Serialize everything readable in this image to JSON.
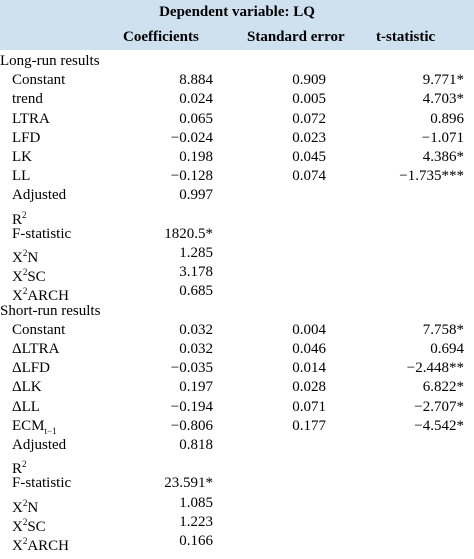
{
  "header": {
    "title": "Dependent variable: LQ",
    "col_coef": "Coefficients",
    "col_se": "Standard error",
    "col_t": "t-statistic"
  },
  "rows": [
    {
      "label": "Long-run results",
      "section": true
    },
    {
      "label": "Constant",
      "coef": "8.884",
      "se": "0.909",
      "t": "9.771*"
    },
    {
      "label": "trend",
      "coef": "0.024",
      "se": "0.005",
      "t": "4.703*"
    },
    {
      "label": "LTRA",
      "coef": "0.065",
      "se": "0.072",
      "t": "0.896"
    },
    {
      "label": "LFD",
      "coef": "−0.024",
      "se": "0.023",
      "t": "−1.071"
    },
    {
      "label": "LK",
      "coef": "0.198",
      "se": "0.045",
      "t": "4.386*"
    },
    {
      "label": "LL",
      "coef": "−0.128",
      "se": "0.074",
      "t": "−1.735***"
    },
    {
      "label": "Adjusted",
      "coef": "0.997"
    },
    {
      "label": "R",
      "sup": "2"
    },
    {
      "label": "F-statistic",
      "coef": "1820.5*"
    },
    {
      "label": "X",
      "sup": "2",
      "label_tail": "N",
      "coef": "1.285"
    },
    {
      "label": "X",
      "sup": "2",
      "label_tail": "SC",
      "coef": "3.178"
    },
    {
      "label": "X",
      "sup": "2",
      "label_tail": "ARCH",
      "coef": "0.685"
    },
    {
      "label": "Short-run results",
      "section": true
    },
    {
      "label": "Constant",
      "coef": "0.032",
      "se": "0.004",
      "t": "7.758*"
    },
    {
      "label": "ΔLTRA",
      "coef": "0.032",
      "se": "0.046",
      "t": "0.694"
    },
    {
      "label": "ΔLFD",
      "coef": "−0.035",
      "se": "0.014",
      "t": "−2.448**"
    },
    {
      "label": "ΔLK",
      "coef": "0.197",
      "se": "0.028",
      "t": "6.822*"
    },
    {
      "label": "ΔLL",
      "coef": "−0.194",
      "se": "0.071",
      "t": "−2.707*"
    },
    {
      "label": "ECM",
      "sub": "t−1",
      "coef": "−0.806",
      "se": "0.177",
      "t": "−4.542*"
    },
    {
      "label": "Adjusted",
      "coef": "0.818"
    },
    {
      "label": "R",
      "sup": "2"
    },
    {
      "label": "F-statistic",
      "coef": "23.591*"
    },
    {
      "label": "X",
      "sup": "2",
      "label_tail": "N",
      "coef": "1.085"
    },
    {
      "label": "X",
      "sup": "2",
      "label_tail": "SC",
      "coef": "1.223"
    },
    {
      "label": "X",
      "sup": "2",
      "label_tail": "ARCH",
      "coef": "0.166"
    }
  ]
}
